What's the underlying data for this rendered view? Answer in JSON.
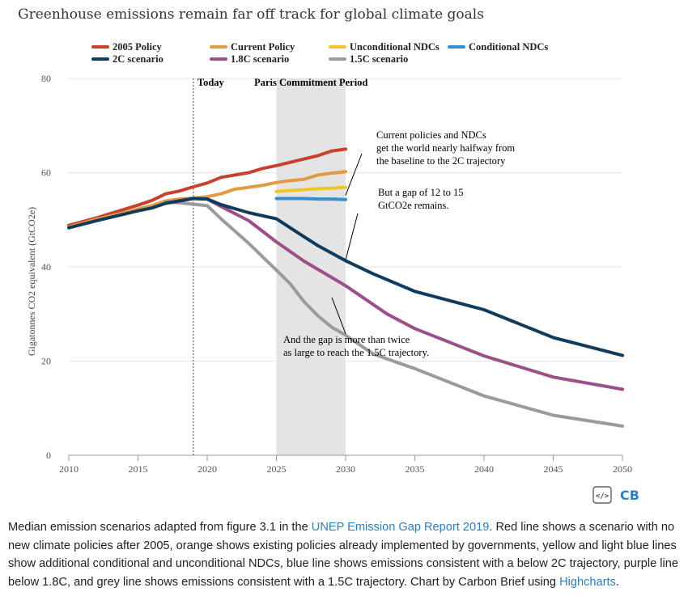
{
  "chart_data": {
    "type": "line",
    "title": "Greenhouse emissions remain far off track for global climate goals",
    "ylabel": "Gigatonnes CO2 equivalent (GtCO2e)",
    "xlabel": "",
    "xlim": [
      2010,
      2050
    ],
    "ylim": [
      0,
      80
    ],
    "x_ticks": [
      "2010",
      "2015",
      "2020",
      "2025",
      "2030",
      "2035",
      "2040",
      "2045",
      "2050"
    ],
    "y_ticks": [
      "0",
      "20",
      "40",
      "60",
      "80"
    ],
    "grid": "horizontal",
    "legend_position": "top",
    "series": [
      {
        "name": "2005 Policy",
        "color": "#c8402e",
        "x": [
          2010,
          2012,
          2014,
          2015,
          2016,
          2017,
          2018,
          2019,
          2020,
          2021,
          2023,
          2024,
          2025,
          2026,
          2027,
          2028,
          2029,
          2030
        ],
        "y": [
          48.8,
          50.4,
          52.2,
          53.1,
          54.1,
          55.5,
          56.1,
          57.0,
          57.8,
          59.0,
          60.0,
          60.9,
          61.5,
          62.2,
          62.9,
          63.6,
          64.6,
          65.0
        ]
      },
      {
        "name": "Current Policy",
        "color": "#e39a43",
        "x": [
          2010,
          2012,
          2014,
          2015,
          2016,
          2017,
          2018,
          2019,
          2020,
          2021,
          2022,
          2023,
          2024,
          2025,
          2026,
          2027,
          2028,
          2029,
          2030
        ],
        "y": [
          48.5,
          50.1,
          51.5,
          52.3,
          53.0,
          54.0,
          54.4,
          54.6,
          54.9,
          55.5,
          56.5,
          56.9,
          57.3,
          57.9,
          58.3,
          58.6,
          59.5,
          59.9,
          60.2
        ]
      },
      {
        "name": "Unconditional NDCs",
        "color": "#f2c42c",
        "x": [
          2025,
          2026,
          2027,
          2028,
          2029,
          2030
        ],
        "y": [
          56.0,
          56.2,
          56.4,
          56.6,
          56.7,
          56.9
        ]
      },
      {
        "name": "Conditional NDCs",
        "color": "#3a8ecf",
        "x": [
          2025,
          2026,
          2027,
          2028,
          2029,
          2030
        ],
        "y": [
          54.5,
          54.5,
          54.5,
          54.4,
          54.4,
          54.3
        ]
      },
      {
        "name": "2C scenario",
        "color": "#0f3b5f",
        "x": [
          2010,
          2012,
          2014,
          2015,
          2016,
          2017,
          2018,
          2019,
          2020,
          2021,
          2023,
          2025,
          2026,
          2028,
          2030,
          2032,
          2035,
          2040,
          2045,
          2050
        ],
        "y": [
          48.3,
          49.8,
          51.2,
          51.9,
          52.5,
          53.5,
          54.0,
          54.5,
          54.4,
          53.2,
          51.5,
          50.2,
          48.3,
          44.5,
          41.3,
          38.5,
          34.8,
          30.9,
          25.0,
          21.2
        ]
      },
      {
        "name": "1.8C scenario",
        "color": "#9c4f88",
        "x": [
          2017,
          2018,
          2019,
          2020,
          2021,
          2023,
          2025,
          2027,
          2030,
          2033,
          2035,
          2040,
          2045,
          2050
        ],
        "y": [
          53.5,
          54.0,
          54.5,
          54.4,
          52.8,
          49.8,
          45.3,
          41.2,
          36.0,
          30.0,
          26.9,
          21.1,
          16.6,
          14.0
        ]
      },
      {
        "name": "1.5C scenario",
        "color": "#9b9b9b",
        "x": [
          2017,
          2018,
          2019,
          2020,
          2021,
          2023,
          2025,
          2026,
          2027,
          2028,
          2029,
          2030,
          2032,
          2035,
          2040,
          2045,
          2050
        ],
        "y": [
          53.8,
          53.6,
          53.3,
          53.0,
          50.2,
          45.0,
          39.3,
          36.4,
          32.6,
          29.6,
          27.2,
          25.5,
          21.5,
          18.4,
          12.6,
          8.5,
          6.2
        ]
      }
    ],
    "vertical_marker": {
      "x": 2019,
      "label": "Today"
    },
    "band": {
      "from": 2025,
      "to": 2030,
      "label": "Paris Commitment Period",
      "color": "#e4e4e4"
    },
    "annotations": [
      {
        "lines": [
          "Current policies and NDCs",
          "get the world nearly halfway from",
          "the baseline to the 2C trajectory"
        ],
        "x": 2030,
        "y": 55.2
      },
      {
        "lines": [
          "But a gap of 12 to 15",
          "GtCO2e remains."
        ],
        "x": 2030,
        "y": 41.5
      },
      {
        "lines": [
          "And the gap is more than twice",
          "as large to reach the 1.5C trajectory."
        ],
        "x": 2030,
        "y": 25.8
      }
    ]
  },
  "brand": {
    "logo_text": "CB",
    "code_glyph": "</>"
  },
  "caption": {
    "part1": "Median emission scenarios adapted from figure 3.1 in the ",
    "link1": "UNEP Emission Gap Report 2019",
    "part2": ". Red line shows a scenario with no new climate policies after 2005, orange shows existing policies already implemented by governments, yellow and light blue lines show additional conditional and unconditional NDCs, blue line shows emissions consistent with a below 2C trajectory, purple line below 1.8C, and grey line shows emissions consistent with a 1.5C trajectory. Chart by Carbon Brief using ",
    "link2": "Highcharts",
    "part3": "."
  }
}
